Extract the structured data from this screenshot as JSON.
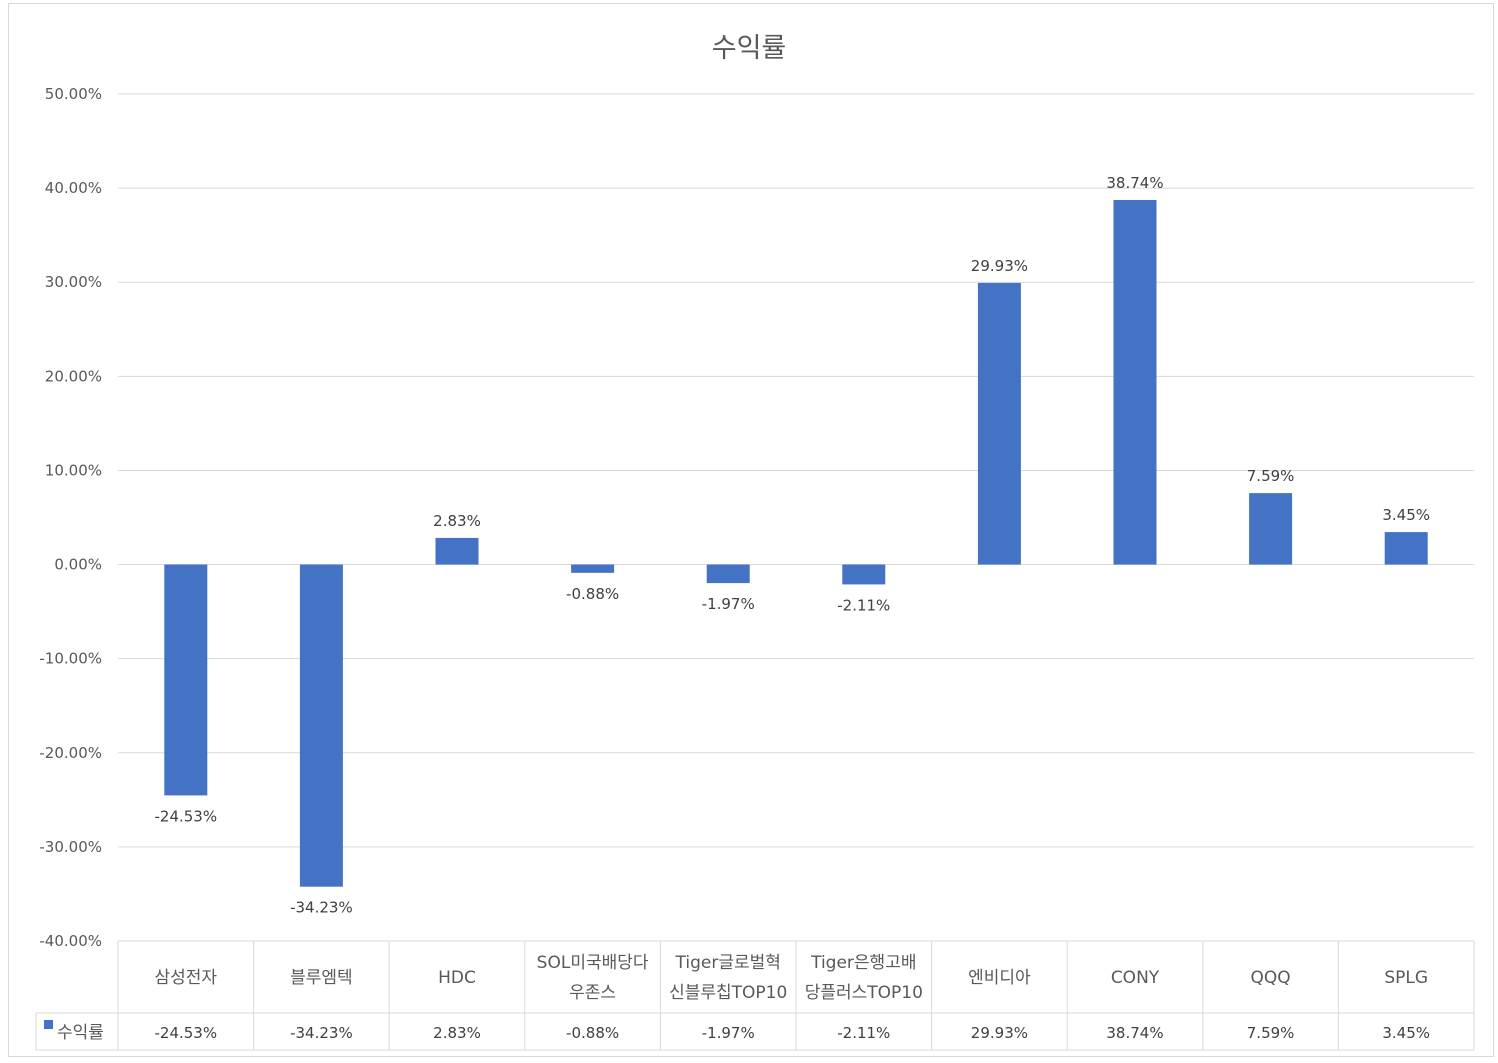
{
  "chart_data": {
    "type": "bar",
    "title": "수익률",
    "categories": [
      [
        "삼성전자"
      ],
      [
        "블루엠텍"
      ],
      [
        "HDC"
      ],
      [
        "SOL미국배당다",
        "우존스"
      ],
      [
        "Tiger글로벌혁",
        "신블루칩TOP10"
      ],
      [
        "Tiger은행고배",
        "당플러스TOP10"
      ],
      [
        "엔비디아"
      ],
      [
        "CONY"
      ],
      [
        "QQQ"
      ],
      [
        "SPLG"
      ]
    ],
    "series": [
      {
        "name": "수익률",
        "values": [
          -24.53,
          -34.23,
          2.83,
          -0.88,
          -1.97,
          -2.11,
          29.93,
          38.74,
          7.59,
          3.45
        ],
        "labels": [
          "-24.53%",
          "-34.23%",
          "2.83%",
          "-0.88%",
          "-1.97%",
          "-2.11%",
          "29.93%",
          "38.74%",
          "7.59%",
          "3.45%"
        ]
      }
    ],
    "ylim": [
      -40,
      50
    ],
    "yticks": [
      "50.00%",
      "40.00%",
      "30.00%",
      "20.00%",
      "10.00%",
      "0.00%",
      "-10.00%",
      "-20.00%",
      "-30.00%",
      "-40.00%"
    ],
    "ytick_values": [
      50,
      40,
      30,
      20,
      10,
      0,
      -10,
      -20,
      -30,
      -40
    ],
    "grid": true,
    "legend": "data-table",
    "color": "#4472C4"
  }
}
